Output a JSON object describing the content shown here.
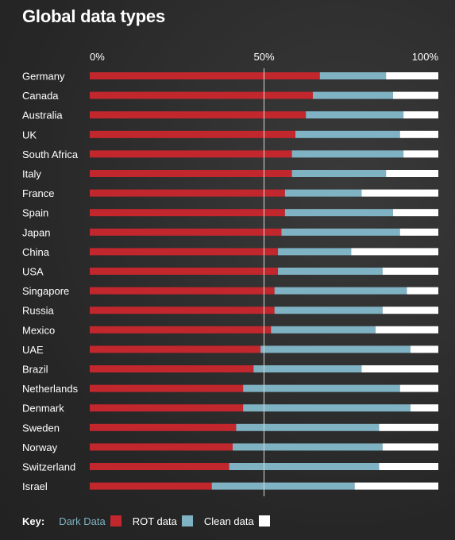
{
  "title": "Global data types",
  "colors": {
    "dark": "#c1272d",
    "rot": "#7fb2c2",
    "clean": "#ffffff",
    "key_dark_text": "#7fb2c2"
  },
  "chart_data": {
    "type": "bar",
    "orientation": "horizontal",
    "stacked": true,
    "title": "Global data types",
    "xlim": [
      0,
      100
    ],
    "xticks": [
      "0%",
      "50%",
      "100%"
    ],
    "grid": "50% reference line",
    "categories": [
      "Germany",
      "Canada",
      "Australia",
      "UK",
      "South Africa",
      "Italy",
      "France",
      "Spain",
      "Japan",
      "China",
      "USA",
      "Singapore",
      "Russia",
      "Mexico",
      "UAE",
      "Brazil",
      "Netherlands",
      "Denmark",
      "Sweden",
      "Norway",
      "Switzerland",
      "Israel"
    ],
    "series": [
      {
        "name": "Dark Data",
        "values": [
          66,
          64,
          62,
          59,
          58,
          58,
          56,
          56,
          55,
          54,
          54,
          53,
          53,
          52,
          49,
          47,
          44,
          44,
          42,
          41,
          40,
          35
        ]
      },
      {
        "name": "ROT data",
        "values": [
          19,
          23,
          28,
          30,
          32,
          27,
          22,
          31,
          34,
          21,
          30,
          38,
          31,
          30,
          43,
          31,
          45,
          48,
          41,
          43,
          43,
          41
        ]
      },
      {
        "name": "Clean data",
        "values": [
          15,
          13,
          10,
          11,
          10,
          15,
          22,
          13,
          11,
          25,
          16,
          9,
          16,
          18,
          8,
          22,
          11,
          8,
          17,
          16,
          17,
          24
        ]
      }
    ],
    "legend": {
      "position": "bottom-left",
      "title": "Key:",
      "entries": [
        "Dark Data",
        "ROT data",
        "Clean data"
      ]
    }
  }
}
